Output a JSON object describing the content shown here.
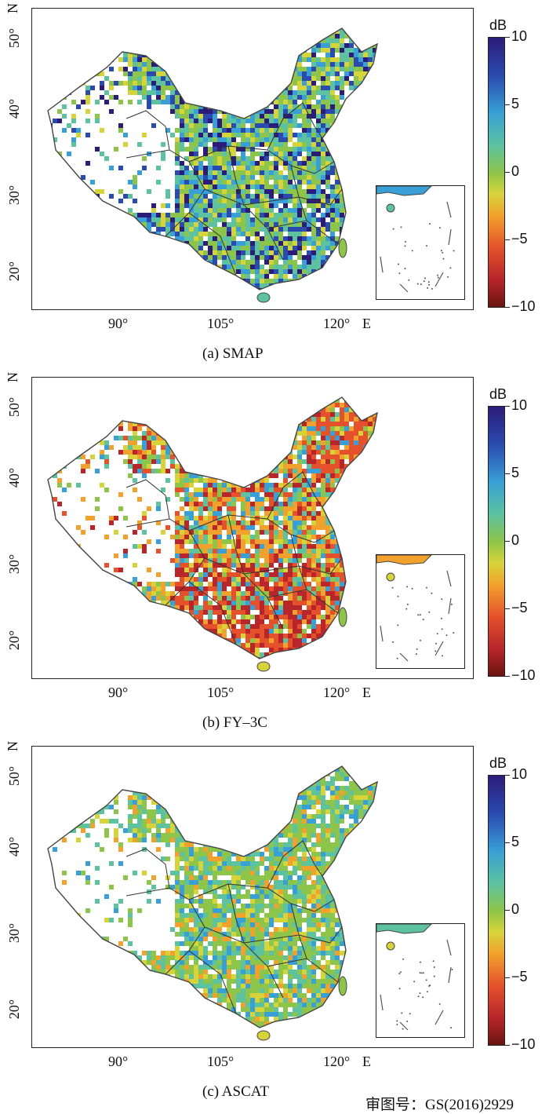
{
  "panels": [
    {
      "caption": "(a) SMAP"
    },
    {
      "caption": "(b) FY–3C"
    },
    {
      "caption": "(c) ASCAT"
    }
  ],
  "axes": {
    "lat_labels": [
      "50°",
      "40°",
      "30°",
      "20°"
    ],
    "lat_unit": "N",
    "lon_labels": [
      "90°",
      "105°",
      "120°"
    ],
    "lon_unit": "E"
  },
  "colorbar": {
    "unit": "dB",
    "ticks": [
      "10",
      "5",
      "0",
      "−5",
      "−10"
    ],
    "colors": [
      "#2c1c7a",
      "#2a4ab0",
      "#38a0d6",
      "#5cc2a0",
      "#8cc54a",
      "#d7d43a",
      "#f2a22c",
      "#e4512b",
      "#b8252a",
      "#6a1410"
    ]
  },
  "review_number": "审图号：GS(2016)2929"
}
